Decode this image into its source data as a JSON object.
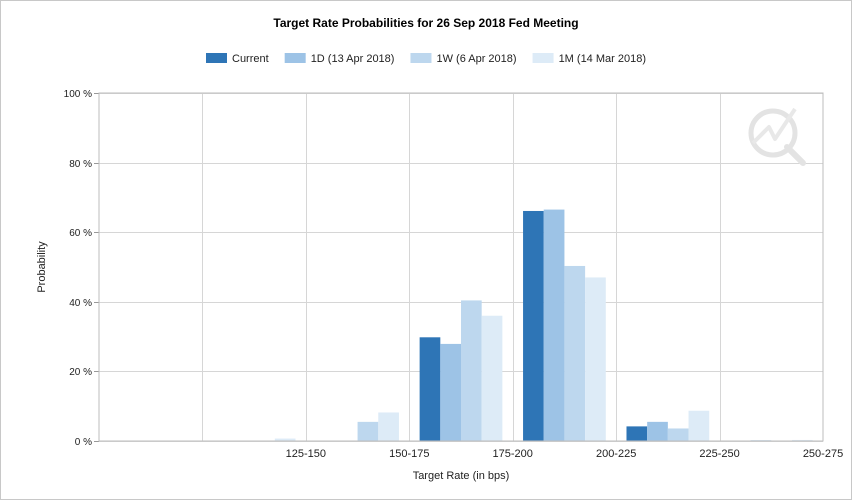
{
  "chart_data": {
    "type": "bar",
    "title": "Target Rate Probabilities for 26 Sep 2018 Fed Meeting",
    "xlabel": "Target Rate (in bps)",
    "ylabel": "Probability",
    "categories": [
      "",
      "125-150",
      "150-175",
      "175-200",
      "200-225",
      "225-250",
      "250-275"
    ],
    "ylim": [
      0,
      100
    ],
    "yticks": [
      0,
      20,
      40,
      60,
      80,
      100
    ],
    "ytick_labels": [
      "0 %",
      "20 %",
      "40 %",
      "60 %",
      "80 %",
      "100 %"
    ],
    "grid": true,
    "legend_position": "top-center",
    "series": [
      {
        "name": "Current",
        "color": "#2e75b6",
        "values": [
          0,
          0,
          0,
          29.8,
          66.1,
          4.2,
          0
        ]
      },
      {
        "name": "1D (13 Apr 2018)",
        "color": "#9dc3e6",
        "values": [
          0,
          0,
          0,
          27.9,
          66.5,
          5.5,
          0.2
        ]
      },
      {
        "name": "1W (6 Apr 2018)",
        "color": "#bdd7ee",
        "values": [
          0,
          0,
          5.5,
          40.4,
          50.3,
          3.6,
          0.1
        ]
      },
      {
        "name": "1M (14 Mar 2018)",
        "color": "#ddebf7",
        "values": [
          0,
          0.7,
          8.2,
          36.0,
          47.0,
          8.7,
          0.3
        ]
      }
    ]
  }
}
